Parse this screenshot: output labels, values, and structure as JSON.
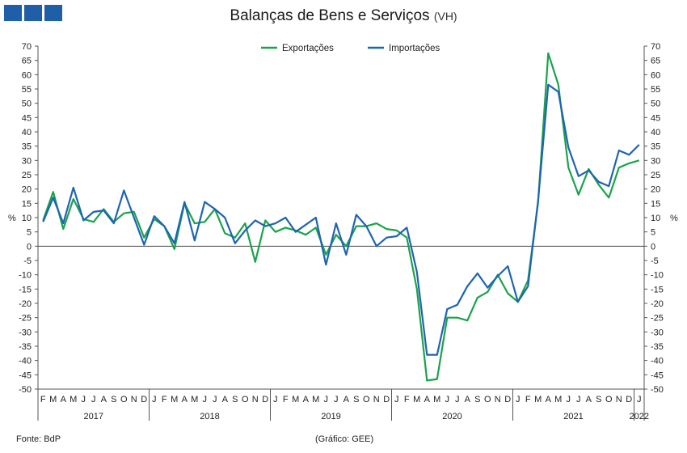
{
  "chart_data": {
    "type": "line",
    "title": "Balanças de Bens e Serviços",
    "subtitle": "(VH)",
    "ylabel_left": "%",
    "ylabel_right": "%",
    "ylim": [
      -50,
      70
    ],
    "ystep": 5,
    "grid": false,
    "legend_position": "top-center",
    "month_initials": [
      "J",
      "F",
      "M",
      "A",
      "M",
      "J",
      "J",
      "A",
      "S",
      "O",
      "N",
      "D"
    ],
    "start_month_index": 1,
    "years": [
      {
        "label": "2017",
        "months": 11
      },
      {
        "label": "2018",
        "months": 12
      },
      {
        "label": "2019",
        "months": 12
      },
      {
        "label": "2020",
        "months": 12
      },
      {
        "label": "2021",
        "months": 12
      },
      {
        "label": "2022",
        "months": 1
      }
    ],
    "series": [
      {
        "name": "Exportações",
        "color": "#1aa34a",
        "values": [
          9,
          19,
          6,
          16.5,
          9.5,
          8.5,
          13,
          8.5,
          11.5,
          12,
          3,
          9.5,
          7,
          -1,
          15,
          8,
          8.5,
          13,
          4.5,
          3,
          8,
          -5.5,
          9,
          5,
          6.5,
          5.5,
          4,
          6.5,
          -3,
          4,
          0,
          7,
          7,
          8,
          6,
          5.5,
          3,
          -15,
          -47,
          -46.5,
          -25,
          -25,
          -26,
          -18,
          -16,
          -10,
          -16.5,
          -19.5,
          -12,
          15.5,
          67.5,
          56.5,
          27.5,
          18,
          27,
          21.5,
          17,
          27.5,
          29,
          30
        ]
      },
      {
        "name": "Importações",
        "color": "#1f63b3",
        "values": [
          8.5,
          17,
          8,
          20.5,
          9,
          12,
          12.5,
          8,
          19.5,
          10,
          0.5,
          10.5,
          7,
          1,
          15.5,
          2,
          15.5,
          13,
          10,
          1,
          5.5,
          9,
          7,
          8,
          10,
          5,
          7.5,
          10,
          -6.5,
          8,
          -3,
          11,
          7,
          0,
          3,
          3.5,
          6.5,
          -9,
          -38,
          -38,
          -22,
          -20.5,
          -14,
          -9.5,
          -14.5,
          -10.5,
          -7,
          -19.5,
          -14,
          16,
          56.5,
          54,
          34.5,
          24.5,
          26.5,
          22.5,
          21,
          33.5,
          32,
          35.5
        ]
      }
    ]
  },
  "footer": {
    "source": "Fonte: BdP",
    "credit": "(Gráfico: GEE)"
  }
}
